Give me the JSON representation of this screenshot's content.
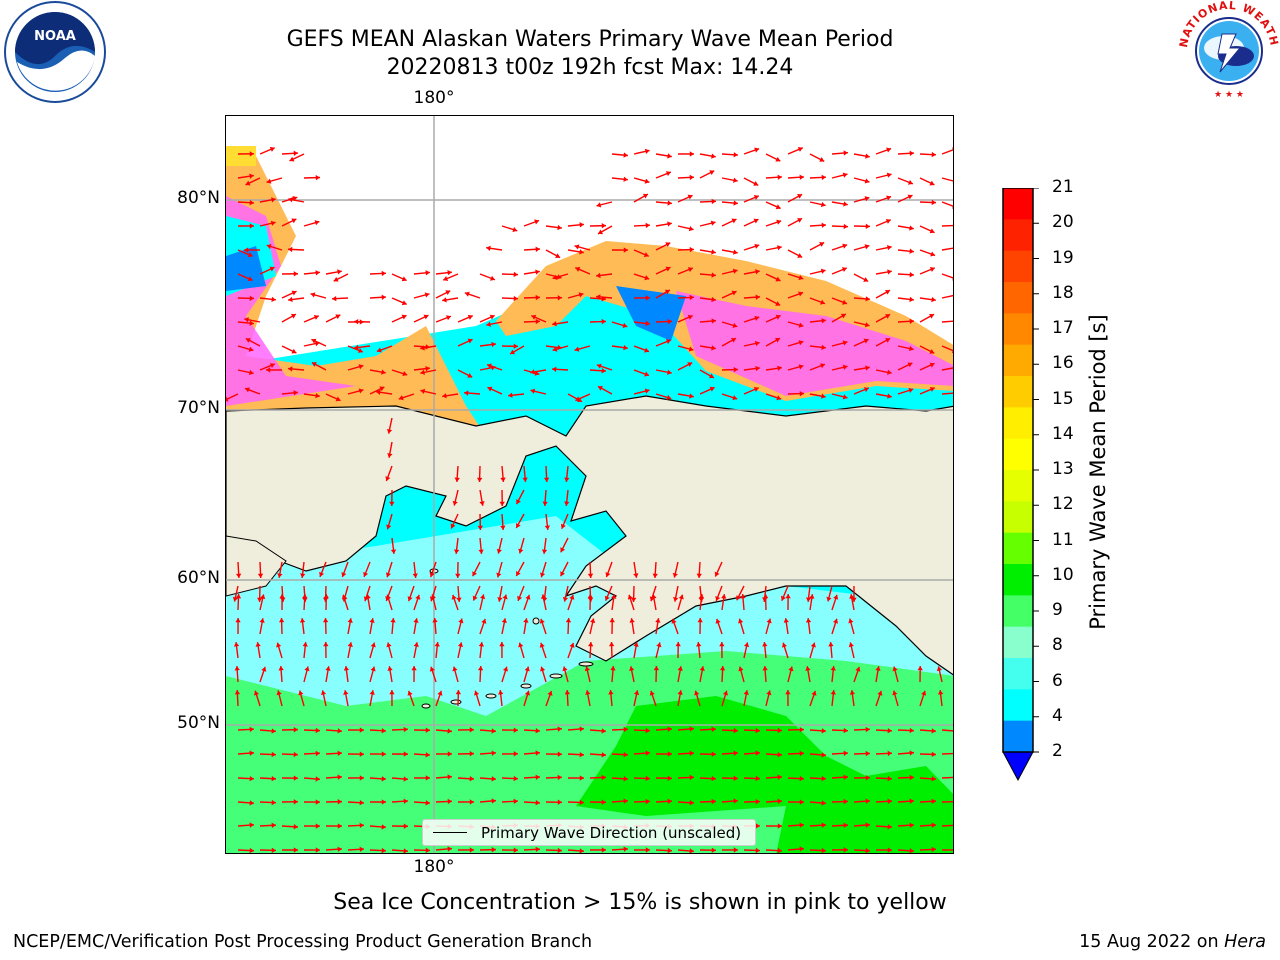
{
  "title_line1": "GEFS MEAN Alaskan Waters Primary Wave Mean Period",
  "title_line2": "20220813 t00z 192h fcst   Max: 14.24",
  "lon_top_label": "180°",
  "lon_bottom_label": "180°",
  "lat_labels": [
    "80°N",
    "70°N",
    "60°N",
    "50°N"
  ],
  "legend_label": "Primary Wave Direction (unscaled)",
  "colorbar": {
    "label": "Primary Wave Mean Period [s]",
    "ticks": [
      "21",
      "20",
      "19",
      "18",
      "17",
      "16",
      "15",
      "14",
      "13",
      "12",
      "11",
      "10",
      "9",
      "8",
      "6",
      "4",
      "2"
    ],
    "colors": [
      "#ff0000",
      "#ff2200",
      "#ff4400",
      "#ff6600",
      "#ff8800",
      "#ffaa00",
      "#ffcc00",
      "#ffee00",
      "#ffff00",
      "#e6ff00",
      "#c8ff00",
      "#66ff00",
      "#00ee00",
      "#44ff66",
      "#88ffcc",
      "#44ffee",
      "#00ffff",
      "#0088ff"
    ],
    "extend_color": "#0000ff"
  },
  "caption": "Sea Ice Concentration > 15% is shown in pink to yellow",
  "footer_left": "NCEP/EMC/Verification Post Processing Product Generation Branch",
  "footer_right_date": "15 Aug 2022 on ",
  "footer_right_machine": "Hera",
  "logos": {
    "noaa_text": "NOAA",
    "nws_text": "NATIONAL WEATHER SERVICE"
  },
  "colors": {
    "land": "#efeedd",
    "ocean_cyan": "#00ffff",
    "ocean_lightcyan": "#88ffff",
    "ocean_green": "#44ff77",
    "ocean_brightgreen": "#00ee00",
    "ice_pink": "#ff66ff",
    "ice_orange": "#ffbb55",
    "ice_yellow": "#ffdd33",
    "arrow_red": "#ff0000",
    "grid": "#aaaaaa"
  }
}
